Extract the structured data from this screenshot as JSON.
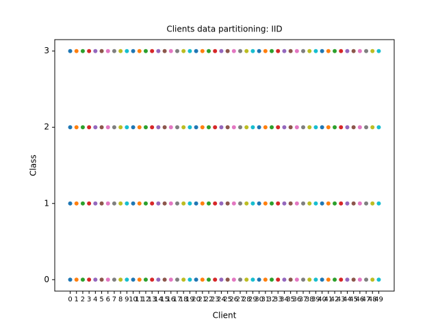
{
  "chart_data": {
    "type": "scatter",
    "title": "Clients data partitioning: IID",
    "xlabel": "Client",
    "ylabel": "Class",
    "xlim": [
      -2.45,
      51.45
    ],
    "ylim": [
      -0.15,
      3.15
    ],
    "xticks": [
      0,
      1,
      2,
      3,
      4,
      5,
      6,
      7,
      8,
      9,
      10,
      11,
      12,
      13,
      14,
      15,
      16,
      17,
      18,
      19,
      20,
      21,
      22,
      23,
      24,
      25,
      26,
      27,
      28,
      29,
      30,
      31,
      32,
      33,
      34,
      35,
      36,
      37,
      38,
      39,
      40,
      41,
      42,
      43,
      44,
      45,
      46,
      47,
      48,
      49
    ],
    "yticks": [
      0,
      1,
      2,
      3
    ],
    "series": [
      {
        "color": "#1f77b4",
        "x": [
          0,
          0,
          0,
          0
        ],
        "values": [
          0,
          1,
          2,
          3
        ]
      },
      {
        "color": "#ff7f0e",
        "x": [
          1,
          1,
          1,
          1
        ],
        "values": [
          0,
          1,
          2,
          3
        ]
      },
      {
        "color": "#2ca02c",
        "x": [
          2,
          2,
          2,
          2
        ],
        "values": [
          0,
          1,
          2,
          3
        ]
      },
      {
        "color": "#d62728",
        "x": [
          3,
          3,
          3,
          3
        ],
        "values": [
          0,
          1,
          2,
          3
        ]
      },
      {
        "color": "#9467bd",
        "x": [
          4,
          4,
          4,
          4
        ],
        "values": [
          0,
          1,
          2,
          3
        ]
      },
      {
        "color": "#8c564b",
        "x": [
          5,
          5,
          5,
          5
        ],
        "values": [
          0,
          1,
          2,
          3
        ]
      },
      {
        "color": "#e377c2",
        "x": [
          6,
          6,
          6,
          6
        ],
        "values": [
          0,
          1,
          2,
          3
        ]
      },
      {
        "color": "#7f7f7f",
        "x": [
          7,
          7,
          7,
          7
        ],
        "values": [
          0,
          1,
          2,
          3
        ]
      },
      {
        "color": "#bcbd22",
        "x": [
          8,
          8,
          8,
          8
        ],
        "values": [
          0,
          1,
          2,
          3
        ]
      },
      {
        "color": "#17becf",
        "x": [
          9,
          9,
          9,
          9
        ],
        "values": [
          0,
          1,
          2,
          3
        ]
      },
      {
        "color": "#1f77b4",
        "x": [
          10,
          10,
          10,
          10
        ],
        "values": [
          0,
          1,
          2,
          3
        ]
      },
      {
        "color": "#ff7f0e",
        "x": [
          11,
          11,
          11,
          11
        ],
        "values": [
          0,
          1,
          2,
          3
        ]
      },
      {
        "color": "#2ca02c",
        "x": [
          12,
          12,
          12,
          12
        ],
        "values": [
          0,
          1,
          2,
          3
        ]
      },
      {
        "color": "#d62728",
        "x": [
          13,
          13,
          13,
          13
        ],
        "values": [
          0,
          1,
          2,
          3
        ]
      },
      {
        "color": "#9467bd",
        "x": [
          14,
          14,
          14,
          14
        ],
        "values": [
          0,
          1,
          2,
          3
        ]
      },
      {
        "color": "#8c564b",
        "x": [
          15,
          15,
          15,
          15
        ],
        "values": [
          0,
          1,
          2,
          3
        ]
      },
      {
        "color": "#e377c2",
        "x": [
          16,
          16,
          16,
          16
        ],
        "values": [
          0,
          1,
          2,
          3
        ]
      },
      {
        "color": "#7f7f7f",
        "x": [
          17,
          17,
          17,
          17
        ],
        "values": [
          0,
          1,
          2,
          3
        ]
      },
      {
        "color": "#bcbd22",
        "x": [
          18,
          18,
          18,
          18
        ],
        "values": [
          0,
          1,
          2,
          3
        ]
      },
      {
        "color": "#17becf",
        "x": [
          19,
          19,
          19,
          19
        ],
        "values": [
          0,
          1,
          2,
          3
        ]
      },
      {
        "color": "#1f77b4",
        "x": [
          20,
          20,
          20,
          20
        ],
        "values": [
          0,
          1,
          2,
          3
        ]
      },
      {
        "color": "#ff7f0e",
        "x": [
          21,
          21,
          21,
          21
        ],
        "values": [
          0,
          1,
          2,
          3
        ]
      },
      {
        "color": "#2ca02c",
        "x": [
          22,
          22,
          22,
          22
        ],
        "values": [
          0,
          1,
          2,
          3
        ]
      },
      {
        "color": "#d62728",
        "x": [
          23,
          23,
          23,
          23
        ],
        "values": [
          0,
          1,
          2,
          3
        ]
      },
      {
        "color": "#9467bd",
        "x": [
          24,
          24,
          24,
          24
        ],
        "values": [
          0,
          1,
          2,
          3
        ]
      },
      {
        "color": "#8c564b",
        "x": [
          25,
          25,
          25,
          25
        ],
        "values": [
          0,
          1,
          2,
          3
        ]
      },
      {
        "color": "#e377c2",
        "x": [
          26,
          26,
          26,
          26
        ],
        "values": [
          0,
          1,
          2,
          3
        ]
      },
      {
        "color": "#7f7f7f",
        "x": [
          27,
          27,
          27,
          27
        ],
        "values": [
          0,
          1,
          2,
          3
        ]
      },
      {
        "color": "#bcbd22",
        "x": [
          28,
          28,
          28,
          28
        ],
        "values": [
          0,
          1,
          2,
          3
        ]
      },
      {
        "color": "#17becf",
        "x": [
          29,
          29,
          29,
          29
        ],
        "values": [
          0,
          1,
          2,
          3
        ]
      },
      {
        "color": "#1f77b4",
        "x": [
          30,
          30,
          30,
          30
        ],
        "values": [
          0,
          1,
          2,
          3
        ]
      },
      {
        "color": "#ff7f0e",
        "x": [
          31,
          31,
          31,
          31
        ],
        "values": [
          0,
          1,
          2,
          3
        ]
      },
      {
        "color": "#2ca02c",
        "x": [
          32,
          32,
          32,
          32
        ],
        "values": [
          0,
          1,
          2,
          3
        ]
      },
      {
        "color": "#d62728",
        "x": [
          33,
          33,
          33,
          33
        ],
        "values": [
          0,
          1,
          2,
          3
        ]
      },
      {
        "color": "#9467bd",
        "x": [
          34,
          34,
          34,
          34
        ],
        "values": [
          0,
          1,
          2,
          3
        ]
      },
      {
        "color": "#8c564b",
        "x": [
          35,
          35,
          35,
          35
        ],
        "values": [
          0,
          1,
          2,
          3
        ]
      },
      {
        "color": "#e377c2",
        "x": [
          36,
          36,
          36,
          36
        ],
        "values": [
          0,
          1,
          2,
          3
        ]
      },
      {
        "color": "#7f7f7f",
        "x": [
          37,
          37,
          37,
          37
        ],
        "values": [
          0,
          1,
          2,
          3
        ]
      },
      {
        "color": "#bcbd22",
        "x": [
          38,
          38,
          38,
          38
        ],
        "values": [
          0,
          1,
          2,
          3
        ]
      },
      {
        "color": "#17becf",
        "x": [
          39,
          39,
          39,
          39
        ],
        "values": [
          0,
          1,
          2,
          3
        ]
      },
      {
        "color": "#1f77b4",
        "x": [
          40,
          40,
          40,
          40
        ],
        "values": [
          0,
          1,
          2,
          3
        ]
      },
      {
        "color": "#ff7f0e",
        "x": [
          41,
          41,
          41,
          41
        ],
        "values": [
          0,
          1,
          2,
          3
        ]
      },
      {
        "color": "#2ca02c",
        "x": [
          42,
          42,
          42,
          42
        ],
        "values": [
          0,
          1,
          2,
          3
        ]
      },
      {
        "color": "#d62728",
        "x": [
          43,
          43,
          43,
          43
        ],
        "values": [
          0,
          1,
          2,
          3
        ]
      },
      {
        "color": "#9467bd",
        "x": [
          44,
          44,
          44,
          44
        ],
        "values": [
          0,
          1,
          2,
          3
        ]
      },
      {
        "color": "#8c564b",
        "x": [
          45,
          45,
          45,
          45
        ],
        "values": [
          0,
          1,
          2,
          3
        ]
      },
      {
        "color": "#e377c2",
        "x": [
          46,
          46,
          46,
          46
        ],
        "values": [
          0,
          1,
          2,
          3
        ]
      },
      {
        "color": "#7f7f7f",
        "x": [
          47,
          47,
          47,
          47
        ],
        "values": [
          0,
          1,
          2,
          3
        ]
      },
      {
        "color": "#bcbd22",
        "x": [
          48,
          48,
          48,
          48
        ],
        "values": [
          0,
          1,
          2,
          3
        ]
      },
      {
        "color": "#17becf",
        "x": [
          49,
          49,
          49,
          49
        ],
        "values": [
          0,
          1,
          2,
          3
        ]
      }
    ]
  }
}
